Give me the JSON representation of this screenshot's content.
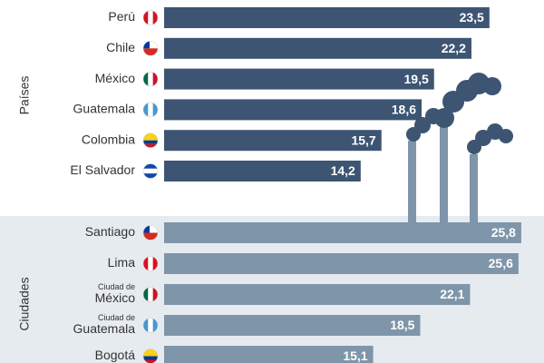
{
  "chart_data": [
    {
      "type": "bar",
      "group_label": "Países",
      "categories": [
        "Perú",
        "Chile",
        "México",
        "Guatemala",
        "Colombia",
        "El Salvador"
      ],
      "values": [
        23.5,
        22.2,
        19.5,
        18.6,
        15.7,
        14.2
      ],
      "value_labels": [
        "23,5",
        "22,2",
        "19,5",
        "18,6",
        "15,7",
        "14,2"
      ],
      "color": "#3d5573",
      "xlim": [
        0,
        26
      ]
    },
    {
      "type": "bar",
      "group_label": "Ciudades",
      "category_prefixes": [
        null,
        null,
        "Ciudad de",
        "Ciudad de",
        null
      ],
      "categories": [
        "Santiago",
        "Lima",
        "México",
        "Guatemala",
        "Bogotá"
      ],
      "values": [
        25.8,
        25.6,
        22.1,
        18.5,
        15.1
      ],
      "value_labels": [
        "25,8",
        "25,6",
        "22,1",
        "18,5",
        "15,1"
      ],
      "color": "#7f95aa",
      "xlim": [
        0,
        26
      ]
    }
  ]
}
